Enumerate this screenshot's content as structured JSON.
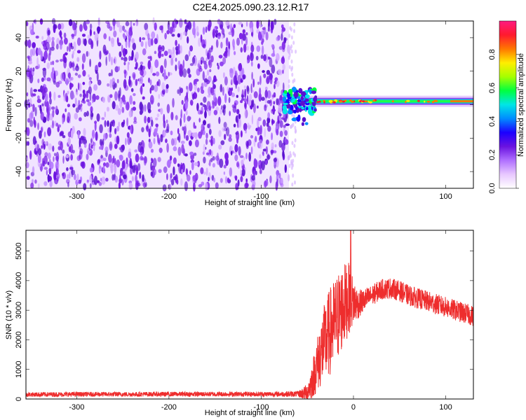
{
  "title": "C2E4.2025.090.23.12.R17",
  "colors": {
    "spectrogram_noise": "#7a1fe6",
    "snr_line": "#ee2d2d",
    "colorbar": [
      "#ffffff",
      "#e8c8ff",
      "#b070ff",
      "#6a12e0",
      "#1c00ff",
      "#008cff",
      "#00e6e6",
      "#00ff40",
      "#a6ff00",
      "#ffee00",
      "#ff7700",
      "#ff1a2e",
      "#ff1a80"
    ]
  },
  "chart_data": [
    {
      "type": "heatmap",
      "xlabel": "Height of straight line (km)",
      "ylabel": "Frequency (Hz)",
      "xlim": [
        -355,
        130
      ],
      "ylim": [
        -50,
        50
      ],
      "xticks": [
        "-300",
        "-200",
        "-100",
        "0",
        "100"
      ],
      "yticks": [
        "40",
        "20",
        "0",
        "-20",
        "-40"
      ],
      "regions": [
        {
          "name": "noise",
          "x": [
            -355,
            -70
          ],
          "y": [
            -50,
            50
          ],
          "amplitude": [
            0.15,
            0.25
          ]
        },
        {
          "name": "carrier",
          "x": [
            -75,
            130
          ],
          "y_center": 2,
          "amplitude": [
            0.3,
            0.95
          ]
        }
      ],
      "colorbar": {
        "label": "Normalized spectral amplitude",
        "range": [
          0.0,
          1.0
        ],
        "ticks": [
          "0.0",
          "0.2",
          "0.4",
          "0.6",
          "0.8"
        ]
      }
    },
    {
      "type": "line",
      "xlabel": "Height of straight line (km)",
      "ylabel": "SNR (10 * v/v)",
      "xlim": [
        -355,
        130
      ],
      "ylim": [
        0,
        5700
      ],
      "xticks": [
        "-300",
        "-200",
        "-100",
        "0",
        "100"
      ],
      "yticks": [
        "0",
        "1000",
        "2000",
        "3000",
        "4000",
        "5000"
      ],
      "series": [
        {
          "x": [
            -355,
            -300,
            -250,
            -200,
            -150,
            -100,
            -60,
            -50,
            -45,
            -40,
            -35,
            -30,
            -25,
            -20,
            -15,
            -10,
            -5,
            0,
            5,
            10,
            20,
            30,
            40,
            50,
            60,
            70,
            80,
            90,
            100,
            110,
            120,
            130
          ],
          "y": [
            150,
            160,
            160,
            165,
            165,
            165,
            170,
            220,
            600,
            1100,
            1600,
            2000,
            2300,
            2600,
            2900,
            3200,
            3400,
            3300,
            3200,
            3300,
            3500,
            3700,
            3750,
            3650,
            3500,
            3400,
            3300,
            3200,
            3100,
            3000,
            2900,
            2800
          ],
          "noise_amplitude": [
            80,
            80,
            80,
            80,
            80,
            80,
            100,
            300,
            600,
            900,
            1200,
            1400,
            1500,
            1500,
            1500,
            1400,
            1200,
            800,
            500,
            400,
            350,
            350,
            350,
            350,
            350,
            350,
            350,
            350,
            350,
            350,
            350,
            350
          ],
          "peak": {
            "x": -3,
            "y": 5700
          }
        }
      ]
    }
  ]
}
